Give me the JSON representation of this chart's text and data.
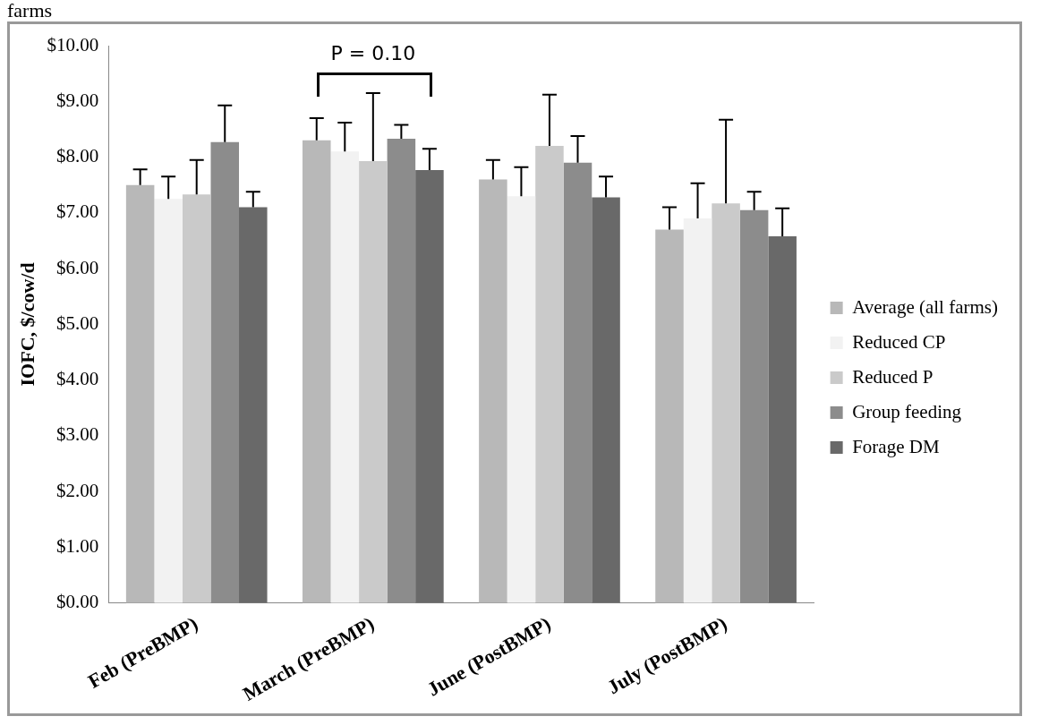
{
  "chart_data": {
    "type": "bar",
    "ylabel": "IOFC, $/cow/d",
    "categories": [
      "Feb (PreBMP)",
      "March (PreBMP)",
      "June (PostBMP)",
      "July (PostBMP)"
    ],
    "series": [
      {
        "name": "Average (all farms)",
        "color": "#b8b8b8",
        "values": [
          7.5,
          8.3,
          7.6,
          6.7
        ],
        "errors": [
          [
            7.5,
            7.78
          ],
          [
            8.3,
            8.7
          ],
          [
            7.6,
            7.95
          ],
          [
            6.7,
            7.1
          ]
        ]
      },
      {
        "name": "Reduced CP",
        "color": "#f2f2f2",
        "values": [
          7.25,
          8.1,
          7.3,
          6.9
        ],
        "errors": [
          [
            7.25,
            7.65
          ],
          [
            8.1,
            8.62
          ],
          [
            7.3,
            7.82
          ],
          [
            6.9,
            7.53
          ]
        ]
      },
      {
        "name": "Reduced P",
        "color": "#cacaca",
        "values": [
          7.33,
          7.93,
          8.2,
          7.17
        ],
        "errors": [
          [
            7.33,
            7.95
          ],
          [
            7.93,
            9.15
          ],
          [
            8.2,
            9.12
          ],
          [
            7.17,
            8.67
          ]
        ]
      },
      {
        "name": "Group feeding",
        "color": "#8c8c8c",
        "values": [
          8.27,
          8.33,
          7.9,
          7.05
        ],
        "errors": [
          [
            8.27,
            8.93
          ],
          [
            8.33,
            8.58
          ],
          [
            7.9,
            8.38
          ],
          [
            7.05,
            7.38
          ]
        ]
      },
      {
        "name": "Forage DM",
        "color": "#696969",
        "values": [
          7.1,
          7.77,
          7.28,
          6.58
        ],
        "errors": [
          [
            7.1,
            7.38
          ],
          [
            7.77,
            8.15
          ],
          [
            7.28,
            7.65
          ],
          [
            6.58,
            7.08
          ]
        ]
      }
    ],
    "ylim": [
      0,
      10
    ],
    "yticks": [
      {
        "value": 0,
        "label": "$0.00"
      },
      {
        "value": 1,
        "label": "$1.00"
      },
      {
        "value": 2,
        "label": "$2.00"
      },
      {
        "value": 3,
        "label": "$3.00"
      },
      {
        "value": 4,
        "label": "$4.00"
      },
      {
        "value": 5,
        "label": "$5.00"
      },
      {
        "value": 6,
        "label": "$6.00"
      },
      {
        "value": 7,
        "label": "$7.00"
      },
      {
        "value": 8,
        "label": "$8.00"
      },
      {
        "value": 9,
        "label": "$9.00"
      },
      {
        "value": 10,
        "label": "$10.00"
      }
    ],
    "grid": false,
    "legend": "right",
    "annotations": [
      "farms",
      "P = 0.10"
    ]
  }
}
